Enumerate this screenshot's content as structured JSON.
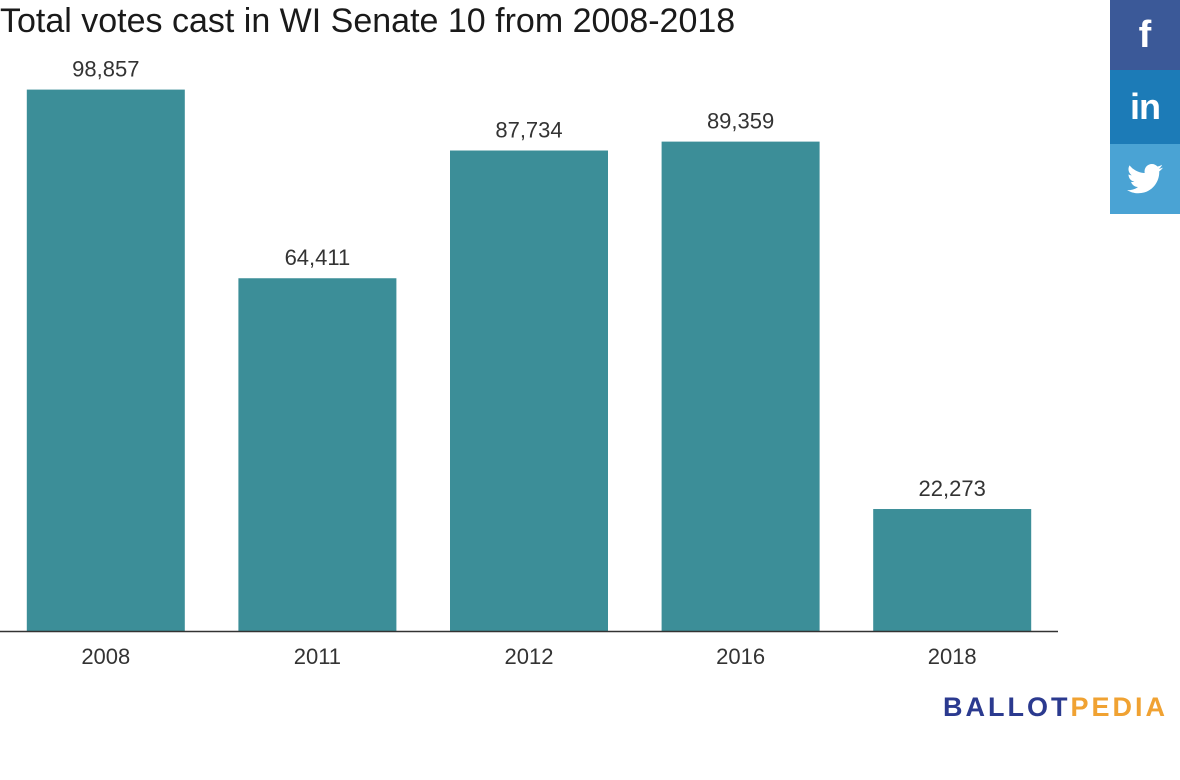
{
  "colors": {
    "bar": "#3c8e98",
    "axis": "#333333",
    "facebook": "#3b5998",
    "linkedin": "#1c7bb7",
    "twitter": "#4aa3d4",
    "brand_ballot": "#2b3a8f",
    "brand_pedia": "#f0a232"
  },
  "share": {
    "facebook": {
      "icon": "facebook-icon",
      "glyph": "f"
    },
    "linkedin": {
      "icon": "linkedin-icon",
      "glyph": "in"
    },
    "twitter": {
      "icon": "twitter-icon"
    }
  },
  "brand": {
    "part1": "BALLOT",
    "part2": "PEDIA"
  },
  "chart_data": {
    "type": "bar",
    "title": "Total votes cast in WI Senate 10 from 2008-2018",
    "categories": [
      "2008",
      "2011",
      "2012",
      "2016",
      "2018"
    ],
    "values": [
      98857,
      64411,
      87734,
      89359,
      22273
    ],
    "value_labels": [
      "98,857",
      "64,411",
      "87,734",
      "89,359",
      "22,273"
    ],
    "xlabel": "",
    "ylabel": "",
    "ylim": [
      0,
      107000
    ],
    "grid": false,
    "legend": "none"
  }
}
